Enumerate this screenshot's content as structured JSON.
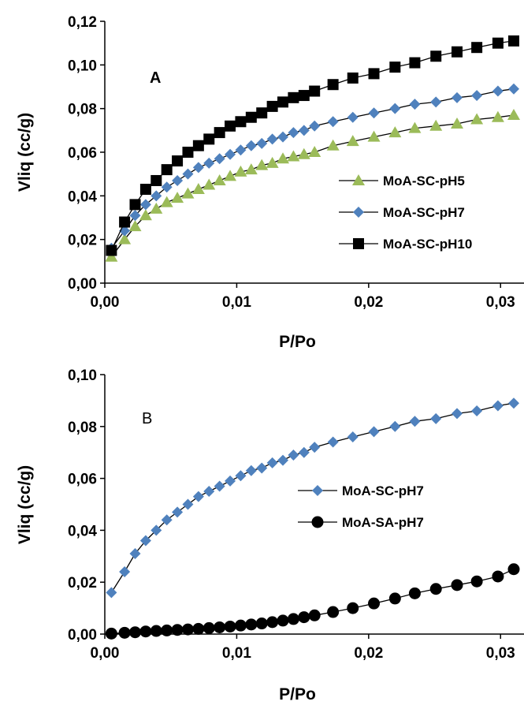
{
  "chart_data": [
    {
      "type": "line",
      "panel_label": "A",
      "xlabel": "P/Po",
      "ylabel": "Vliq (cc/g)",
      "xlim": [
        0,
        0.031
      ],
      "ylim": [
        0,
        0.12
      ],
      "x_ticks": [
        "0,00",
        "0,01",
        "0,02",
        "0,03"
      ],
      "y_ticks": [
        "0,00",
        "0,02",
        "0,04",
        "0,06",
        "0,08",
        "0,10",
        "0,12"
      ],
      "grid": false,
      "legend_position": "center-right",
      "series": [
        {
          "name": "MoA-SC-pH5",
          "color": "#9BBB59",
          "marker": "triangle",
          "x": [
            0.0005,
            0.0015,
            0.0023,
            0.0031,
            0.0039,
            0.0047,
            0.0055,
            0.0063,
            0.0071,
            0.0079,
            0.0087,
            0.0095,
            0.0103,
            0.0111,
            0.0119,
            0.0127,
            0.0135,
            0.0143,
            0.0151,
            0.0159,
            0.0173,
            0.0188,
            0.0204,
            0.022,
            0.0235,
            0.0251,
            0.0267,
            0.0282,
            0.0298,
            0.031
          ],
          "y": [
            0.012,
            0.02,
            0.026,
            0.031,
            0.034,
            0.037,
            0.039,
            0.041,
            0.043,
            0.045,
            0.047,
            0.049,
            0.051,
            0.052,
            0.054,
            0.055,
            0.057,
            0.058,
            0.059,
            0.06,
            0.063,
            0.065,
            0.067,
            0.069,
            0.071,
            0.072,
            0.073,
            0.075,
            0.076,
            0.077
          ]
        },
        {
          "name": "MoA-SC-pH7",
          "color": "#4F81BD",
          "marker": "diamond",
          "x": [
            0.0005,
            0.0015,
            0.0023,
            0.0031,
            0.0039,
            0.0047,
            0.0055,
            0.0063,
            0.0071,
            0.0079,
            0.0087,
            0.0095,
            0.0103,
            0.0111,
            0.0119,
            0.0127,
            0.0135,
            0.0143,
            0.0151,
            0.0159,
            0.0173,
            0.0188,
            0.0204,
            0.022,
            0.0235,
            0.0251,
            0.0267,
            0.0282,
            0.0298,
            0.031
          ],
          "y": [
            0.016,
            0.024,
            0.031,
            0.036,
            0.04,
            0.044,
            0.047,
            0.05,
            0.053,
            0.055,
            0.057,
            0.059,
            0.061,
            0.063,
            0.064,
            0.066,
            0.067,
            0.069,
            0.07,
            0.072,
            0.074,
            0.076,
            0.078,
            0.08,
            0.082,
            0.083,
            0.085,
            0.086,
            0.088,
            0.089
          ]
        },
        {
          "name": "MoA-SC-pH10",
          "color": "#000000",
          "marker": "square",
          "x": [
            0.0005,
            0.0015,
            0.0023,
            0.0031,
            0.0039,
            0.0047,
            0.0055,
            0.0063,
            0.0071,
            0.0079,
            0.0087,
            0.0095,
            0.0103,
            0.0111,
            0.0119,
            0.0127,
            0.0135,
            0.0143,
            0.0151,
            0.0159,
            0.0173,
            0.0188,
            0.0204,
            0.022,
            0.0235,
            0.0251,
            0.0267,
            0.0282,
            0.0298,
            0.031
          ],
          "y": [
            0.015,
            0.028,
            0.036,
            0.043,
            0.047,
            0.052,
            0.056,
            0.06,
            0.063,
            0.066,
            0.069,
            0.072,
            0.074,
            0.076,
            0.078,
            0.081,
            0.083,
            0.085,
            0.086,
            0.088,
            0.091,
            0.094,
            0.096,
            0.099,
            0.101,
            0.104,
            0.106,
            0.108,
            0.11,
            0.111
          ]
        }
      ]
    },
    {
      "type": "line",
      "panel_label": "B",
      "xlabel": "P/Po",
      "ylabel": "Vliq (cc/g)",
      "xlim": [
        0,
        0.031
      ],
      "ylim": [
        0,
        0.1
      ],
      "x_ticks": [
        "0,00",
        "0,01",
        "0,02",
        "0,03"
      ],
      "y_ticks": [
        "0,00",
        "0,02",
        "0,04",
        "0,06",
        "0,08",
        "0,10"
      ],
      "grid": false,
      "legend_position": "center-right",
      "series": [
        {
          "name": "MoA-SC-pH7",
          "color": "#4F81BD",
          "marker": "diamond",
          "x": [
            0.0005,
            0.0015,
            0.0023,
            0.0031,
            0.0039,
            0.0047,
            0.0055,
            0.0063,
            0.0071,
            0.0079,
            0.0087,
            0.0095,
            0.0103,
            0.0111,
            0.0119,
            0.0127,
            0.0135,
            0.0143,
            0.0151,
            0.0159,
            0.0173,
            0.0188,
            0.0204,
            0.022,
            0.0235,
            0.0251,
            0.0267,
            0.0282,
            0.0298,
            0.031
          ],
          "y": [
            0.016,
            0.024,
            0.031,
            0.036,
            0.04,
            0.044,
            0.047,
            0.05,
            0.053,
            0.055,
            0.057,
            0.059,
            0.061,
            0.063,
            0.064,
            0.066,
            0.067,
            0.069,
            0.07,
            0.072,
            0.074,
            0.076,
            0.078,
            0.08,
            0.082,
            0.083,
            0.085,
            0.086,
            0.088,
            0.089
          ]
        },
        {
          "name": "MoA-SA-pH7",
          "color": "#000000",
          "marker": "circle",
          "x": [
            0.0005,
            0.0015,
            0.0023,
            0.0031,
            0.0039,
            0.0047,
            0.0055,
            0.0063,
            0.0071,
            0.0079,
            0.0087,
            0.0095,
            0.0103,
            0.0111,
            0.0119,
            0.0127,
            0.0135,
            0.0143,
            0.0151,
            0.0159,
            0.0173,
            0.0188,
            0.0204,
            0.022,
            0.0235,
            0.0251,
            0.0267,
            0.0282,
            0.0298,
            0.031
          ],
          "y": [
            0.0002,
            0.0005,
            0.0007,
            0.001,
            0.0012,
            0.0014,
            0.0016,
            0.0018,
            0.002,
            0.0023,
            0.0026,
            0.0029,
            0.0033,
            0.0037,
            0.0041,
            0.0046,
            0.0052,
            0.0058,
            0.0065,
            0.0072,
            0.0085,
            0.01,
            0.0118,
            0.0137,
            0.0157,
            0.0174,
            0.0189,
            0.0203,
            0.0222,
            0.025
          ]
        }
      ]
    }
  ]
}
